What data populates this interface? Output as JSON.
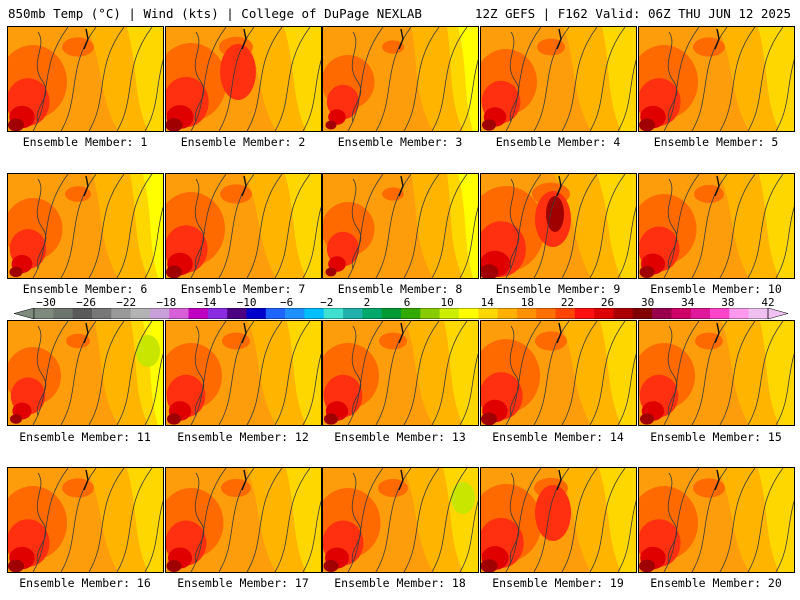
{
  "header": {
    "left": "850mb Temp (°C) | Wind (kts) | College of DuPage NEXLAB",
    "right": "12Z GEFS | F162 Valid: 06Z THU JUN 12 2025"
  },
  "panels": [
    {
      "label": "Ensemble Member: 1",
      "hot": 0.8
    },
    {
      "label": "Ensemble Member: 2",
      "hot": 0.85
    },
    {
      "label": "Ensemble Member: 3",
      "hot": 0.55
    },
    {
      "label": "Ensemble Member: 4",
      "hot": 0.7
    },
    {
      "label": "Ensemble Member: 5",
      "hot": 0.8
    },
    {
      "label": "Ensemble Member: 6",
      "hot": 0.65
    },
    {
      "label": "Ensemble Member: 7",
      "hot": 0.8
    },
    {
      "label": "Ensemble Member: 8",
      "hot": 0.55
    },
    {
      "label": "Ensemble Member: 9",
      "hot": 0.95
    },
    {
      "label": "Ensemble Member: 10",
      "hot": 0.75
    },
    {
      "label": "Ensemble Member: 11",
      "hot": 0.6
    },
    {
      "label": "Ensemble Member: 12",
      "hot": 0.7
    },
    {
      "label": "Ensemble Member: 13",
      "hot": 0.7
    },
    {
      "label": "Ensemble Member: 14",
      "hot": 0.8
    },
    {
      "label": "Ensemble Member: 15",
      "hot": 0.7
    },
    {
      "label": "Ensemble Member: 16",
      "hot": 0.8
    },
    {
      "label": "Ensemble Member: 17",
      "hot": 0.75
    },
    {
      "label": "Ensemble Member: 18",
      "hot": 0.75
    },
    {
      "label": "Ensemble Member: 19",
      "hot": 0.85
    },
    {
      "label": "Ensemble Member: 20",
      "hot": 0.8
    }
  ],
  "colorbar": {
    "ticks": [
      "−30",
      "−26",
      "−22",
      "−18",
      "−14",
      "−10",
      "−6",
      "−2",
      "2",
      "6",
      "10",
      "14",
      "18",
      "22",
      "26",
      "30",
      "34",
      "38",
      "42"
    ],
    "colors": [
      "#7d8a7d",
      "#6e746e",
      "#5a5a5a",
      "#777777",
      "#999999",
      "#b3b3b3",
      "#c8a0d8",
      "#d75fd7",
      "#c000c0",
      "#8a2be2",
      "#4b0082",
      "#0000cd",
      "#1e64ff",
      "#1e90ff",
      "#00bfff",
      "#40e0d0",
      "#20b2aa",
      "#00a86b",
      "#009933",
      "#33aa00",
      "#88cc00",
      "#ccee00",
      "#ffff00",
      "#ffd700",
      "#ffb000",
      "#ff9000",
      "#ff7000",
      "#ff4500",
      "#ff1010",
      "#dd0000",
      "#aa0000",
      "#800000",
      "#99004c",
      "#cc0066",
      "#e0189a",
      "#ff44cc",
      "#ff99ee",
      "#f0c0f0"
    ]
  },
  "map_colors": {
    "yellow": "#ffff00",
    "gold": "#ffd700",
    "amber": "#ffb400",
    "orange": "#fd9d0c",
    "dorange": "#ff6a00",
    "red": "#ff3010",
    "crimson": "#e00000",
    "darkred": "#a00000",
    "green": "#c8e600"
  }
}
